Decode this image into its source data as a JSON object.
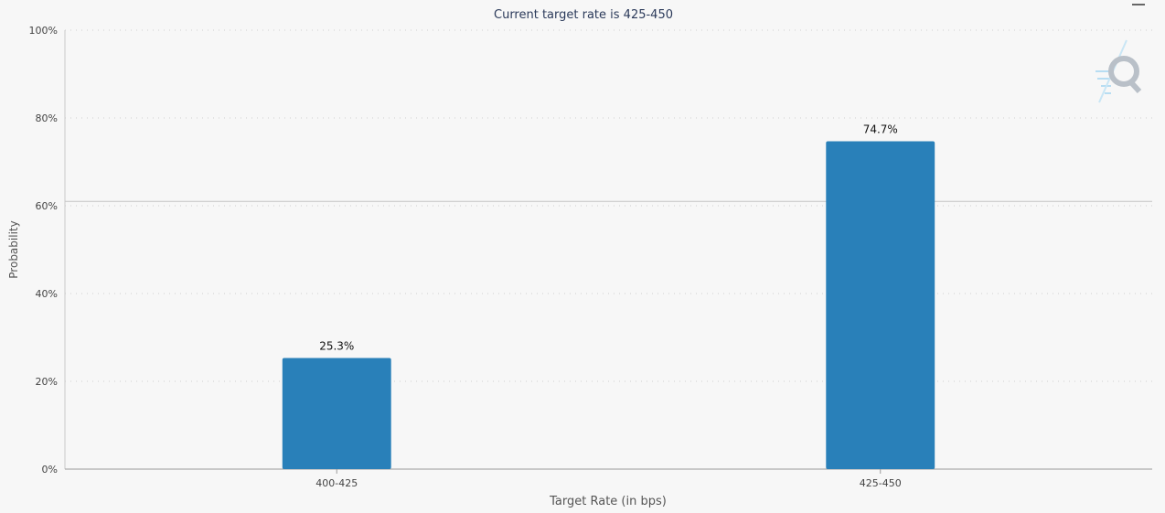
{
  "chart_data": {
    "type": "bar",
    "title": "Current target rate is 425-450",
    "xlabel": "Target Rate (in bps)",
    "ylabel": "Probability",
    "categories": [
      "400-425",
      "425-450"
    ],
    "values": [
      25.3,
      74.7
    ],
    "value_labels": [
      "25.3%",
      "74.7%"
    ],
    "yticks": [
      "0%",
      "20%",
      "40%",
      "60%",
      "80%",
      "100%"
    ],
    "ylim": [
      0,
      100
    ],
    "reference_line_value": 61,
    "grid": true,
    "colors": {
      "bar": "#2980b9",
      "grid": "#cfcfcf",
      "title": "#2b3a5a",
      "axis_text": "#444444",
      "background": "#f7f7f7",
      "logo": "#b9c0c8",
      "logo_lines": "#b7ddf2"
    }
  },
  "icons": {
    "logo": "q-logo-icon",
    "menu": "menu-icon"
  }
}
